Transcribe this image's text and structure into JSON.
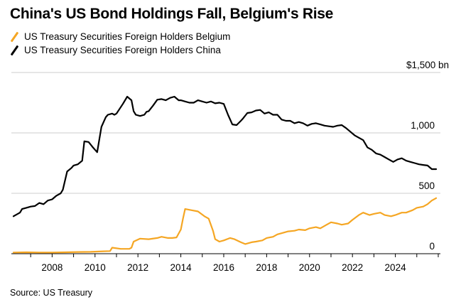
{
  "title": "China's US Bond Holdings Fall, Belgium's Rise",
  "source": "Source: US Treasury",
  "legend": [
    {
      "name": "US Treasury Securities Foreign Holders Belgium",
      "color": "#f5a623"
    },
    {
      "name": "US Treasury Securities Foreign Holders China",
      "color": "#000000"
    }
  ],
  "chart_data": {
    "type": "line",
    "title": "China's US Bond Holdings Fall, Belgium's Rise",
    "xlabel": "",
    "ylabel": "",
    "xlim": [
      2006.1,
      2026.1
    ],
    "ylim": [
      0,
      1500
    ],
    "y_unit_label": "$1,500 bn",
    "y_ticks": [
      {
        "value": 500,
        "label": "500"
      },
      {
        "value": 1000,
        "label": "1,000"
      },
      {
        "value": 0,
        "label": "0"
      }
    ],
    "x_ticks": [
      {
        "value": 2008,
        "label": "2008"
      },
      {
        "value": 2010,
        "label": "2010"
      },
      {
        "value": 2012,
        "label": "2012"
      },
      {
        "value": 2014,
        "label": "2014"
      },
      {
        "value": 2016,
        "label": "2016"
      },
      {
        "value": 2018,
        "label": "2018"
      },
      {
        "value": 2020,
        "label": "2020"
      },
      {
        "value": 2022,
        "label": "2022"
      },
      {
        "value": 2024,
        "label": "2024"
      }
    ],
    "gridlines": "horizontal",
    "series": [
      {
        "name": "US Treasury Securities Foreign Holders China",
        "color": "#000000",
        "x": [
          2006.2,
          2006.5,
          2006.6,
          2006.8,
          2007.0,
          2007.2,
          2007.4,
          2007.6,
          2007.8,
          2008.0,
          2008.2,
          2008.4,
          2008.5,
          2008.7,
          2008.9,
          2009.0,
          2009.2,
          2009.4,
          2009.5,
          2009.7,
          2009.9,
          2010.1,
          2010.3,
          2010.5,
          2010.6,
          2010.8,
          2010.9,
          2011.0,
          2011.3,
          2011.5,
          2011.7,
          2011.8,
          2011.9,
          2012.1,
          2012.3,
          2012.4,
          2012.5,
          2012.7,
          2012.9,
          2013.1,
          2013.3,
          2013.5,
          2013.7,
          2013.9,
          2014.0,
          2014.2,
          2014.4,
          2014.6,
          2014.8,
          2015.0,
          2015.2,
          2015.4,
          2015.6,
          2015.8,
          2016.0,
          2016.2,
          2016.4,
          2016.6,
          2016.8,
          2016.9,
          2017.1,
          2017.3,
          2017.5,
          2017.7,
          2017.9,
          2018.1,
          2018.3,
          2018.5,
          2018.7,
          2018.9,
          2019.1,
          2019.3,
          2019.5,
          2019.7,
          2019.9,
          2020.1,
          2020.3,
          2020.5,
          2020.7,
          2020.9,
          2021.1,
          2021.3,
          2021.5,
          2021.7,
          2021.9,
          2022.1,
          2022.3,
          2022.5,
          2022.7,
          2022.9,
          2023.1,
          2023.3,
          2023.5,
          2023.7,
          2023.9,
          2024.1,
          2024.3,
          2024.5,
          2024.7,
          2024.9,
          2025.1,
          2025.3,
          2025.5,
          2025.7,
          2025.9
        ],
        "y": [
          310,
          340,
          370,
          380,
          390,
          395,
          420,
          410,
          440,
          450,
          480,
          500,
          530,
          680,
          710,
          730,
          740,
          770,
          930,
          925,
          880,
          840,
          1050,
          1130,
          1150,
          1160,
          1150,
          1160,
          1240,
          1300,
          1270,
          1180,
          1150,
          1140,
          1150,
          1175,
          1180,
          1225,
          1275,
          1280,
          1270,
          1290,
          1300,
          1270,
          1270,
          1260,
          1250,
          1250,
          1270,
          1260,
          1250,
          1260,
          1245,
          1250,
          1240,
          1150,
          1070,
          1065,
          1100,
          1120,
          1165,
          1170,
          1185,
          1190,
          1160,
          1170,
          1150,
          1150,
          1110,
          1100,
          1100,
          1080,
          1090,
          1080,
          1060,
          1075,
          1080,
          1070,
          1060,
          1055,
          1050,
          1060,
          1065,
          1040,
          1010,
          980,
          960,
          940,
          880,
          860,
          830,
          820,
          800,
          780,
          760,
          780,
          790,
          770,
          760,
          750,
          740,
          735,
          730,
          700,
          700
        ]
      },
      {
        "name": "US Treasury Securities Foreign Holders Belgium",
        "color": "#f5a623",
        "x": [
          2006.2,
          2006.8,
          2007.4,
          2008.0,
          2008.6,
          2009.2,
          2009.8,
          2010.4,
          2010.7,
          2010.8,
          2011.2,
          2011.6,
          2011.7,
          2011.8,
          2012.1,
          2012.5,
          2012.9,
          2013.1,
          2013.4,
          2013.6,
          2013.8,
          2014.0,
          2014.1,
          2014.2,
          2014.5,
          2014.8,
          2015.1,
          2015.3,
          2015.5,
          2015.6,
          2015.8,
          2016.0,
          2016.3,
          2016.5,
          2016.8,
          2017.0,
          2017.3,
          2017.5,
          2017.8,
          2018.0,
          2018.3,
          2018.5,
          2018.8,
          2019.0,
          2019.3,
          2019.5,
          2019.8,
          2020.0,
          2020.3,
          2020.5,
          2020.8,
          2021.0,
          2021.3,
          2021.5,
          2021.8,
          2022.0,
          2022.3,
          2022.5,
          2022.8,
          2023.0,
          2023.3,
          2023.5,
          2023.8,
          2024.0,
          2024.3,
          2024.5,
          2024.8,
          2025.0,
          2025.3,
          2025.5,
          2025.7,
          2025.9
        ],
        "y": [
          10,
          12,
          10,
          10,
          12,
          14,
          15,
          20,
          22,
          50,
          40,
          40,
          50,
          100,
          125,
          120,
          130,
          140,
          130,
          130,
          135,
          200,
          290,
          370,
          360,
          350,
          310,
          290,
          190,
          120,
          100,
          110,
          130,
          120,
          95,
          80,
          95,
          100,
          110,
          130,
          140,
          160,
          175,
          185,
          190,
          200,
          195,
          210,
          220,
          210,
          240,
          260,
          250,
          240,
          250,
          280,
          320,
          340,
          320,
          330,
          340,
          320,
          310,
          320,
          340,
          340,
          360,
          380,
          390,
          410,
          440,
          460
        ]
      }
    ]
  }
}
